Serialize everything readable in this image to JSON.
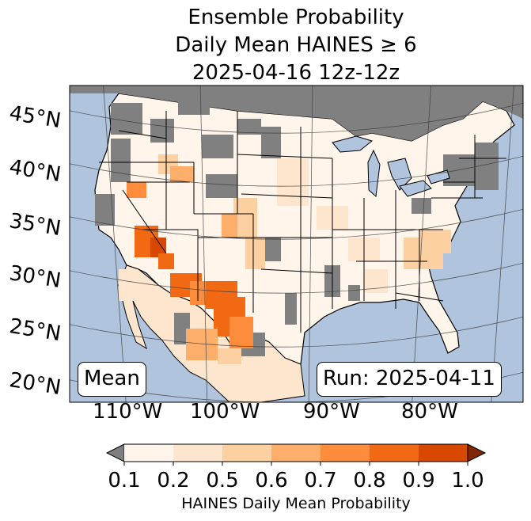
{
  "title": {
    "line1": "Ensemble Probability",
    "line2": "Daily Mean HAINES ≥ 6",
    "line3": "2025-04-16 12z-12z"
  },
  "map": {
    "region": "Contiguous United States",
    "ocean_color": "#b0c4de",
    "nodata_color": "#808080",
    "lon_labels": [
      "110°W",
      "100°W",
      "90°W",
      "80°W"
    ],
    "lat_labels": [
      "45°N",
      "40°N",
      "35°N",
      "30°N",
      "25°N",
      "20°N"
    ]
  },
  "annotations": {
    "left": "Mean",
    "right": "Run: 2025-04-11"
  },
  "colorbar": {
    "ticks": [
      "0.1",
      "0.2",
      "0.5",
      "0.6",
      "0.7",
      "0.8",
      "0.9",
      "1.0"
    ],
    "label": "HAINES Daily Mean Probability",
    "under_color": "#7f7f7f",
    "over_color": "#7f2704",
    "colors": [
      "#fff5eb",
      "#fee6ce",
      "#fdd0a2",
      "#fdae6b",
      "#fd8d3c",
      "#f16913",
      "#d94801"
    ]
  }
}
